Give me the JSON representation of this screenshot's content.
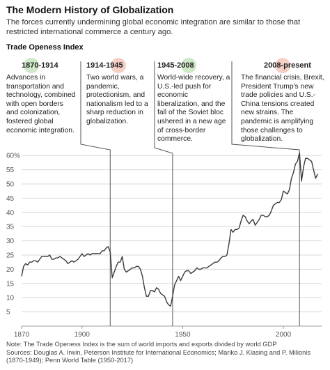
{
  "title": "The Modern History of Globalization",
  "subtitle": "The forces currently undermining global economic integration are similar to those that restricted international commerce a century ago.",
  "index_label": "Trade Openess Index",
  "eras": [
    {
      "label": "1870-1914",
      "text": "Advances in transportation and technology, combined with open borders and colonization, fostered global economic integration.",
      "dot_color": "#cfe8c8"
    },
    {
      "label": "1914-1945",
      "text": "Two world wars, a pandemic, protectionism, and nationalism led to a sharp reduction in globalization.",
      "dot_color": "#f6cfc6"
    },
    {
      "label": "1945-2008",
      "text": "World-wide recovery, a U.S.-led push for economic liberalization, and the fall of the Soviet bloc ushered in a new age of cross-border commerce.",
      "dot_color": "#cfe8c8"
    },
    {
      "label": "2008-present",
      "text": "The financial crisis, Brexit, President Trump's new trade policies and U.S.-China tensions created new strains. The pandemic is amplifying those challenges to globalization.",
      "dot_color": "#f6cfc6"
    }
  ],
  "note": "Note: The Trade Openess Index is the sum of world imports and exports divided by world GDP",
  "sources": "Sources: Douglas A. Irwin, Peterson Institute for International Economics; Mariko J. Klasing and P. Milionis (1870-1949); Penn World Table (1950-2017)",
  "colors": {
    "line": "#3a3a3a",
    "grid": "#d8d8d8",
    "divider": "#555555",
    "axis_text": "#555555"
  },
  "chart_data": {
    "type": "line",
    "xlim": [
      1870,
      2019
    ],
    "ylim": [
      0,
      63
    ],
    "x_ticks": [
      1870,
      1900,
      1950,
      2000
    ],
    "y_ticks": [
      {
        "value": 60,
        "label": "60%"
      },
      {
        "value": 55,
        "label": "55"
      },
      {
        "value": 50,
        "label": "50"
      },
      {
        "value": 45,
        "label": "45"
      },
      {
        "value": 40,
        "label": "40"
      },
      {
        "value": 35,
        "label": "35"
      },
      {
        "value": 30,
        "label": "30"
      },
      {
        "value": 25,
        "label": "25"
      },
      {
        "value": 20,
        "label": "20"
      },
      {
        "value": 15,
        "label": "15"
      },
      {
        "value": 10,
        "label": "10"
      },
      {
        "value": 5,
        "label": "5"
      }
    ],
    "era_boundaries": [
      1914,
      1945,
      2008
    ],
    "grid": true,
    "series": [
      {
        "x": [
          1870,
          1871,
          1872,
          1873,
          1874,
          1875,
          1876,
          1877,
          1878,
          1879,
          1880,
          1881,
          1882,
          1883,
          1884,
          1885,
          1886,
          1887,
          1888,
          1889,
          1890,
          1891,
          1892,
          1893,
          1894,
          1895,
          1896,
          1897,
          1898,
          1899,
          1900,
          1901,
          1902,
          1903,
          1904,
          1905,
          1906,
          1907,
          1908,
          1909,
          1910,
          1911,
          1912,
          1913,
          1914,
          1915,
          1916,
          1917,
          1918,
          1919,
          1920,
          1921,
          1922,
          1923,
          1924,
          1925,
          1926,
          1927,
          1928,
          1929,
          1930,
          1931,
          1932,
          1933,
          1934,
          1935,
          1936,
          1937,
          1938,
          1939,
          1940,
          1941,
          1942,
          1943,
          1944,
          1945,
          1946,
          1947,
          1948,
          1949,
          1950,
          1951,
          1952,
          1953,
          1954,
          1955,
          1956,
          1957,
          1958,
          1959,
          1960,
          1961,
          1962,
          1963,
          1964,
          1965,
          1966,
          1967,
          1968,
          1969,
          1970,
          1971,
          1972,
          1973,
          1974,
          1975,
          1976,
          1977,
          1978,
          1979,
          1980,
          1981,
          1982,
          1983,
          1984,
          1985,
          1986,
          1987,
          1988,
          1989,
          1990,
          1991,
          1992,
          1993,
          1994,
          1995,
          1996,
          1997,
          1998,
          1999,
          2000,
          2001,
          2002,
          2003,
          2004,
          2005,
          2006,
          2007,
          2008,
          2009,
          2010,
          2011,
          2012,
          2013,
          2014,
          2015,
          2016,
          2017
        ],
        "values": [
          17.5,
          21.0,
          22.0,
          21.5,
          22.5,
          22.5,
          23.0,
          23.0,
          22.5,
          23.5,
          24.5,
          24.5,
          24.5,
          24.5,
          25.0,
          23.5,
          23.5,
          24.0,
          24.0,
          24.5,
          24.0,
          23.5,
          23.0,
          22.0,
          22.5,
          23.0,
          22.5,
          23.0,
          23.5,
          24.5,
          25.5,
          24.5,
          25.0,
          25.5,
          25.0,
          25.5,
          25.5,
          25.5,
          25.5,
          25.5,
          26.5,
          26.5,
          27.5,
          28.0,
          26.0,
          17.0,
          19.0,
          21.0,
          22.5,
          22.5,
          24.5,
          20.0,
          19.0,
          19.5,
          20.0,
          20.5,
          20.5,
          21.0,
          21.0,
          20.0,
          17.5,
          13.5,
          10.5,
          10.5,
          12.5,
          12.5,
          12.0,
          13.5,
          13.0,
          11.5,
          11.0,
          10.5,
          8.5,
          7.5,
          7.0,
          10.5,
          14.5,
          16.0,
          17.5,
          16.0,
          17.5,
          19.0,
          19.5,
          19.5,
          18.5,
          19.0,
          19.5,
          20.5,
          20.0,
          20.0,
          20.5,
          20.5,
          20.5,
          21.0,
          21.5,
          22.0,
          22.5,
          22.5,
          23.0,
          24.0,
          24.5,
          24.5,
          25.0,
          29.0,
          34.0,
          33.0,
          34.0,
          34.0,
          34.5,
          37.0,
          39.0,
          38.5,
          37.0,
          36.0,
          37.0,
          37.5,
          35.5,
          36.5,
          37.5,
          39.0,
          39.0,
          38.5,
          38.5,
          39.0,
          40.5,
          42.5,
          43.0,
          43.5,
          43.5,
          44.5,
          47.5,
          47.0,
          46.5,
          48.0,
          52.0,
          54.0,
          57.0,
          58.0,
          61.0,
          51.0,
          56.0,
          59.0,
          59.0,
          58.5,
          58.0,
          55.0,
          52.0,
          53.5
        ]
      }
    ]
  }
}
